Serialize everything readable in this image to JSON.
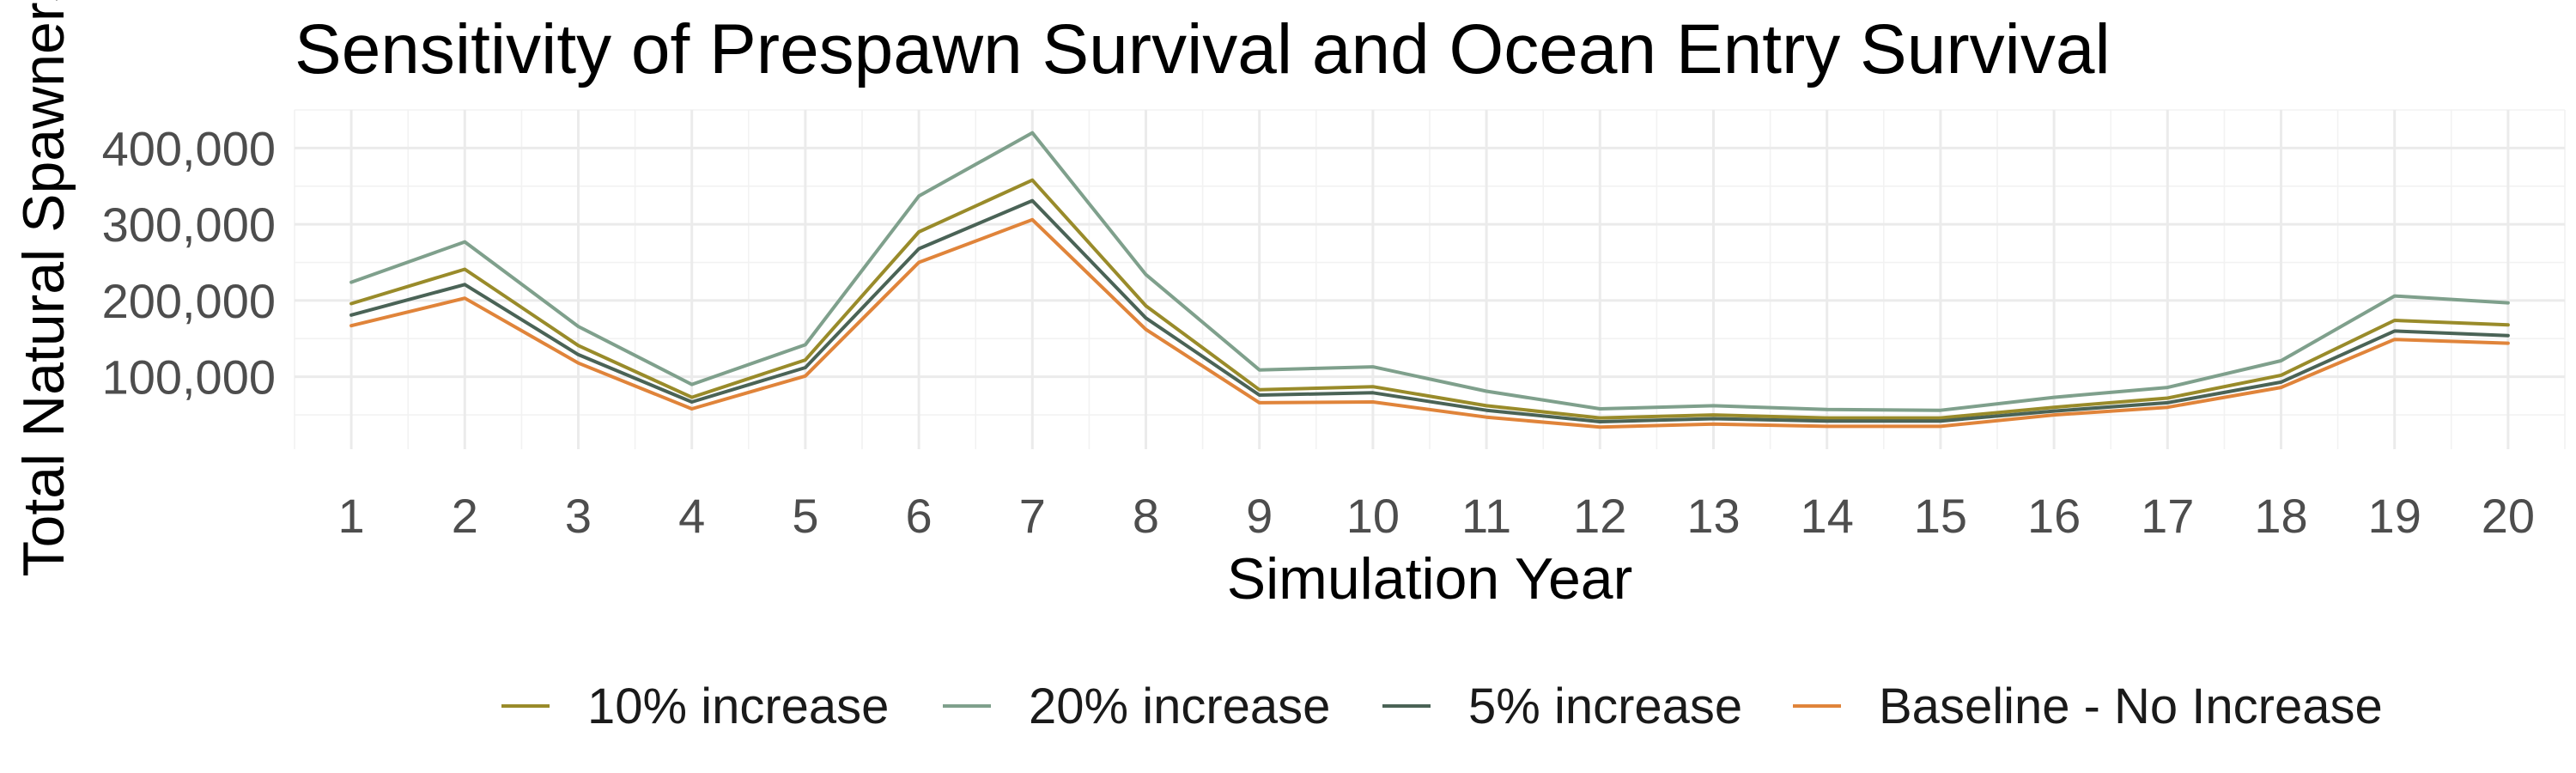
{
  "chart_data": {
    "type": "line",
    "title": "Sensitivity of Prespawn Survival and Ocean Entry Survival",
    "xlabel": "Simulation Year",
    "ylabel": "Total Natural Spawners",
    "x": [
      1,
      2,
      3,
      4,
      5,
      6,
      7,
      8,
      9,
      10,
      11,
      12,
      13,
      14,
      15,
      16,
      17,
      18,
      19,
      20
    ],
    "xlim": [
      0.5,
      20.5
    ],
    "ylim": [
      5000,
      450000
    ],
    "yticks": [
      100000,
      200000,
      300000,
      400000
    ],
    "ytick_labels": [
      "100,000",
      "200,000",
      "300,000",
      "400,000"
    ],
    "grid": true,
    "legend_position": "bottom",
    "series": [
      {
        "name": "10% increase",
        "color": "#998b2a",
        "values": [
          196000,
          241000,
          141000,
          73000,
          122000,
          290000,
          358000,
          193000,
          83000,
          87000,
          62000,
          46000,
          50000,
          46000,
          46000,
          60000,
          72000,
          102000,
          174000,
          168000
        ]
      },
      {
        "name": "20% increase",
        "color": "#7fa08c",
        "values": [
          224000,
          277000,
          166000,
          90000,
          142000,
          337000,
          420000,
          234000,
          109000,
          113000,
          81000,
          58000,
          62000,
          57000,
          56000,
          73000,
          86000,
          121000,
          206000,
          197000
        ]
      },
      {
        "name": "5% increase",
        "color": "#4a6356",
        "values": [
          181000,
          221000,
          129000,
          67000,
          112000,
          268000,
          331000,
          177000,
          76000,
          79000,
          56000,
          41000,
          45000,
          42000,
          42000,
          55000,
          66000,
          93000,
          160000,
          154000
        ]
      },
      {
        "name": "Baseline - No Increase",
        "color": "#e0843a",
        "values": [
          167000,
          203000,
          118000,
          58000,
          101000,
          250000,
          306000,
          162000,
          66000,
          67000,
          47000,
          34000,
          38000,
          35000,
          35000,
          50000,
          60000,
          86000,
          149000,
          144000
        ]
      }
    ]
  }
}
